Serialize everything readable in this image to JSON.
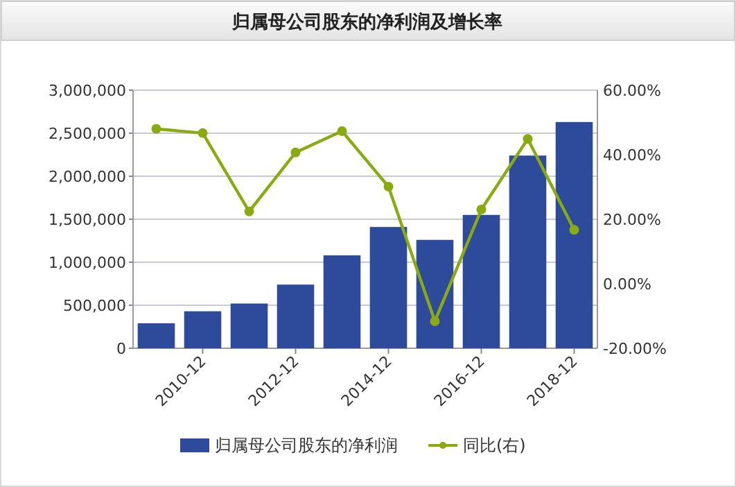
{
  "chart_data": {
    "type": "bar",
    "title": "归属母公司股东的净利润及增长率",
    "categories": [
      null,
      "2010-12",
      null,
      "2012-12",
      null,
      "2014-12",
      null,
      "2016-12",
      null,
      "2018-12"
    ],
    "series": [
      {
        "name": "归属母公司股东的净利润",
        "color": "#2e4a9a",
        "values": [
          290000,
          430000,
          520000,
          740000,
          1080000,
          1410000,
          1260000,
          1550000,
          2240000,
          2630000
        ]
      },
      {
        "name": "同比(右)",
        "type": "line",
        "axis": "y2",
        "color": "#8aaa12",
        "marker": "circle",
        "values": [
          48.0,
          46.7,
          22.4,
          40.7,
          47.3,
          30.1,
          -11.6,
          23.0,
          44.9,
          16.7
        ]
      }
    ],
    "ylim": [
      0,
      3000000
    ],
    "yticks": [
      {
        "value": 0,
        "label": "0"
      },
      {
        "value": 500000,
        "label": "500,000"
      },
      {
        "value": 1000000,
        "label": "1,000,000"
      },
      {
        "value": 1500000,
        "label": "1,500,000"
      },
      {
        "value": 2000000,
        "label": "2,000,000"
      },
      {
        "value": 2500000,
        "label": "2,500,000"
      },
      {
        "value": 3000000,
        "label": "3,000,000"
      }
    ],
    "y2lim": [
      -20,
      60
    ],
    "y2ticks": [
      {
        "value": -20,
        "label": "-20.00%"
      },
      {
        "value": 0,
        "label": "0.00%"
      },
      {
        "value": 20,
        "label": "20.00%"
      },
      {
        "value": 40,
        "label": "40.00%"
      },
      {
        "value": 60,
        "label": "60.00%"
      }
    ],
    "grid": "y",
    "legend": "bottom"
  }
}
